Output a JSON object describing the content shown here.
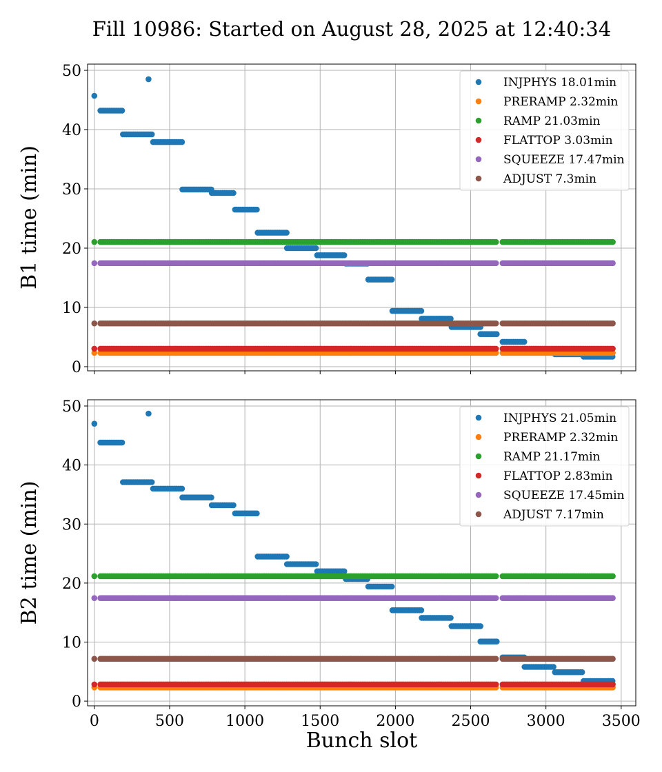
{
  "title": "Fill 10986: Started on August 28, 2025 at 12:40:34",
  "chart_data": [
    {
      "type": "scatter",
      "ylabel": "B1 time (min)",
      "xlabel": "",
      "xlim": [
        -45,
        3597
      ],
      "ylim": [
        -0.7,
        51.05
      ],
      "xticks": [
        "0",
        "500",
        "1000",
        "1500",
        "2000",
        "2500",
        "3000",
        "3500"
      ],
      "yticks": [
        "0",
        "10",
        "20",
        "30",
        "40",
        "50"
      ],
      "grid": true,
      "legend": "top-right",
      "series": [
        {
          "name": "INJPHYS 18.01min",
          "color": "#1f77b4",
          "segments": [
            [
              0,
              0,
              45.7
            ],
            [
              360,
              360,
              48.5
            ],
            [
              40,
              190,
              43.2
            ],
            [
              190,
              390,
              39.2
            ],
            [
              390,
              585,
              37.9
            ],
            [
              585,
              780,
              29.9
            ],
            [
              780,
              935,
              29.3
            ],
            [
              935,
              1085,
              26.5
            ],
            [
              1085,
              1280,
              22.6
            ],
            [
              1280,
              1480,
              20.0
            ],
            [
              1480,
              1670,
              18.8
            ],
            [
              1670,
              1820,
              17.4
            ],
            [
              1820,
              1980,
              14.7
            ],
            [
              1980,
              2175,
              9.4
            ],
            [
              2175,
              2373,
              8.1
            ],
            [
              2373,
              2565,
              6.7
            ],
            [
              2565,
              2675,
              5.5
            ],
            [
              2712,
              2858,
              4.2
            ],
            [
              2858,
              3060,
              2.6
            ],
            [
              3060,
              3248,
              2.1
            ],
            [
              3250,
              3445,
              1.7
            ]
          ]
        },
        {
          "name": "PRERAMP 2.32min",
          "color": "#ff7f0e",
          "segments": [
            [
              0,
              0,
              2.32
            ],
            [
              40,
              2675,
              2.32
            ],
            [
              2712,
              3445,
              2.32
            ]
          ]
        },
        {
          "name": "RAMP 21.03min",
          "color": "#2ca02c",
          "segments": [
            [
              0,
              0,
              21.03
            ],
            [
              40,
              2675,
              21.03
            ],
            [
              2712,
              3445,
              21.03
            ]
          ]
        },
        {
          "name": "FLATTOP 3.03min",
          "color": "#d62728",
          "segments": [
            [
              0,
              0,
              3.03
            ],
            [
              40,
              2675,
              3.03
            ],
            [
              2712,
              3445,
              3.03
            ]
          ]
        },
        {
          "name": "SQUEEZE 17.47min",
          "color": "#9467bd",
          "segments": [
            [
              0,
              0,
              17.47
            ],
            [
              40,
              2675,
              17.47
            ],
            [
              2712,
              3445,
              17.47
            ]
          ]
        },
        {
          "name": "ADJUST 7.3min",
          "color": "#8c564b",
          "segments": [
            [
              0,
              0,
              7.3
            ],
            [
              40,
              2675,
              7.3
            ],
            [
              2712,
              3445,
              7.3
            ]
          ]
        }
      ]
    },
    {
      "type": "scatter",
      "ylabel": "B2 time (min)",
      "xlabel": "Bunch slot",
      "xlim": [
        -45,
        3597
      ],
      "ylim": [
        -0.8,
        51.05
      ],
      "xticks": [
        "0",
        "500",
        "1000",
        "1500",
        "2000",
        "2500",
        "3000",
        "3500"
      ],
      "yticks": [
        "0",
        "10",
        "20",
        "30",
        "40",
        "50"
      ],
      "grid": true,
      "legend": "top-right",
      "series": [
        {
          "name": "INJPHYS 21.05min",
          "color": "#1f77b4",
          "segments": [
            [
              0,
              0,
              47.0
            ],
            [
              360,
              360,
              48.7
            ],
            [
              40,
              190,
              43.8
            ],
            [
              190,
              390,
              37.1
            ],
            [
              390,
              585,
              36.0
            ],
            [
              585,
              780,
              34.5
            ],
            [
              780,
              935,
              33.2
            ],
            [
              935,
              1085,
              31.8
            ],
            [
              1085,
              1280,
              24.5
            ],
            [
              1280,
              1480,
              23.2
            ],
            [
              1480,
              1670,
              22.0
            ],
            [
              1670,
              1820,
              20.7
            ],
            [
              1820,
              1980,
              19.4
            ],
            [
              1980,
              2175,
              15.4
            ],
            [
              2175,
              2373,
              14.1
            ],
            [
              2373,
              2565,
              12.7
            ],
            [
              2565,
              2675,
              10.1
            ],
            [
              2712,
              2858,
              7.4
            ],
            [
              2858,
              3060,
              5.8
            ],
            [
              3060,
              3248,
              4.9
            ],
            [
              3250,
              3445,
              3.4
            ]
          ]
        },
        {
          "name": "PRERAMP 2.32min",
          "color": "#ff7f0e",
          "segments": [
            [
              0,
              0,
              2.32
            ],
            [
              40,
              2675,
              2.32
            ],
            [
              2712,
              3445,
              2.32
            ]
          ]
        },
        {
          "name": "RAMP 21.17min",
          "color": "#2ca02c",
          "segments": [
            [
              0,
              0,
              21.17
            ],
            [
              40,
              2675,
              21.17
            ],
            [
              2712,
              3445,
              21.17
            ]
          ]
        },
        {
          "name": "FLATTOP 2.83min",
          "color": "#d62728",
          "segments": [
            [
              0,
              0,
              2.83
            ],
            [
              40,
              2675,
              2.83
            ],
            [
              2712,
              3445,
              2.83
            ]
          ]
        },
        {
          "name": "SQUEEZE 17.45min",
          "color": "#9467bd",
          "segments": [
            [
              0,
              0,
              17.45
            ],
            [
              40,
              2675,
              17.45
            ],
            [
              2712,
              3445,
              17.45
            ]
          ]
        },
        {
          "name": "ADJUST 7.17min",
          "color": "#8c564b",
          "segments": [
            [
              0,
              0,
              7.17
            ],
            [
              40,
              2675,
              7.17
            ],
            [
              2712,
              3445,
              7.17
            ]
          ]
        }
      ]
    }
  ]
}
